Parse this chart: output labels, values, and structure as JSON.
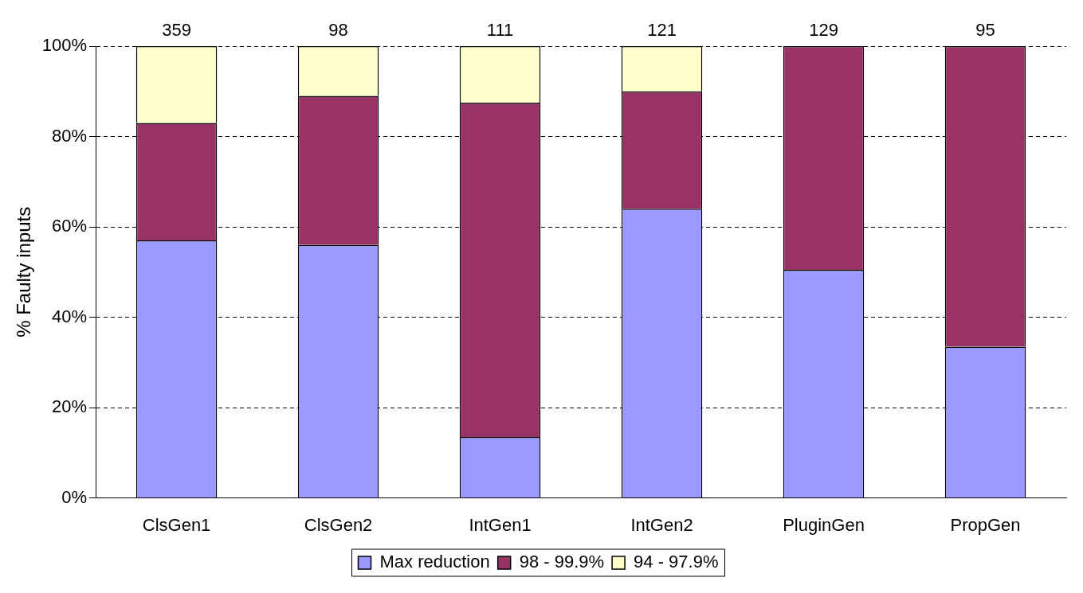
{
  "chart_data": {
    "type": "bar",
    "ylabel": "% Faulty inputs",
    "categories": [
      "ClsGen1",
      "ClsGen2",
      "IntGen1",
      "IntGen2",
      "PluginGen",
      "PropGen"
    ],
    "stacked": true,
    "series": [
      {
        "name": "Max reduction",
        "color": "#9999ff",
        "values": [
          57,
          56,
          13.5,
          64,
          50.5,
          33.5
        ]
      },
      {
        "name": "98 - 99.9%",
        "color": "#993366",
        "values": [
          26,
          33,
          74,
          26,
          49.5,
          66.5
        ]
      },
      {
        "name": "94 - 97.9%",
        "color": "#ffffcc",
        "values": [
          17,
          11,
          12.5,
          10,
          null,
          null
        ]
      }
    ],
    "annotations": [
      "359",
      "98",
      "111",
      "121",
      "129",
      "95"
    ],
    "ylim": [
      0,
      100
    ],
    "yticks": [
      {
        "value": 0,
        "label": "0%"
      },
      {
        "value": 20,
        "label": "20%"
      },
      {
        "value": 40,
        "label": "40%"
      },
      {
        "value": 60,
        "label": "60%"
      },
      {
        "value": 80,
        "label": "80%"
      },
      {
        "value": 100,
        "label": "100%"
      }
    ],
    "grid": "y",
    "legend": "bottom"
  }
}
